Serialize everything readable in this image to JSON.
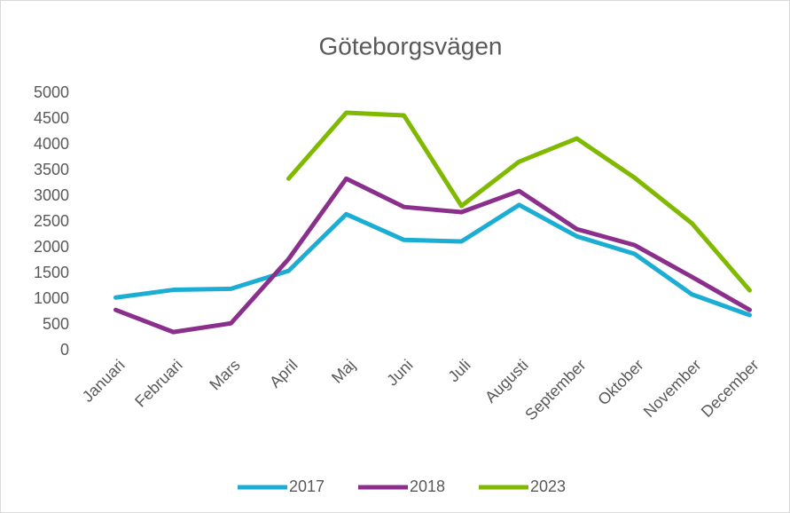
{
  "chart_data": {
    "type": "line",
    "title": "Göteborgsvägen",
    "categories": [
      "Januari",
      "Februari",
      "Mars",
      "April",
      "Maj",
      "Juni",
      "Juli",
      "Augusti",
      "September",
      "Oktober",
      "November",
      "December"
    ],
    "series": [
      {
        "name": "2017",
        "color": "#1cadd4",
        "values": [
          1030,
          1180,
          1200,
          1550,
          2650,
          2150,
          2120,
          2830,
          2220,
          1880,
          1090,
          690
        ]
      },
      {
        "name": "2018",
        "color": "#8b2f8c",
        "values": [
          790,
          360,
          530,
          1780,
          3340,
          2790,
          2690,
          3100,
          2360,
          2050,
          1430,
          790
        ]
      },
      {
        "name": "2023",
        "color": "#7fba00",
        "values": [
          null,
          null,
          null,
          3340,
          4620,
          4570,
          2810,
          3670,
          4120,
          3360,
          2470,
          1170
        ]
      }
    ],
    "ylim": [
      0,
      5000
    ],
    "yticks": [
      0,
      500,
      1000,
      1500,
      2000,
      2500,
      3000,
      3500,
      4000,
      4500,
      5000
    ],
    "grid": false,
    "legend": "bottom"
  }
}
